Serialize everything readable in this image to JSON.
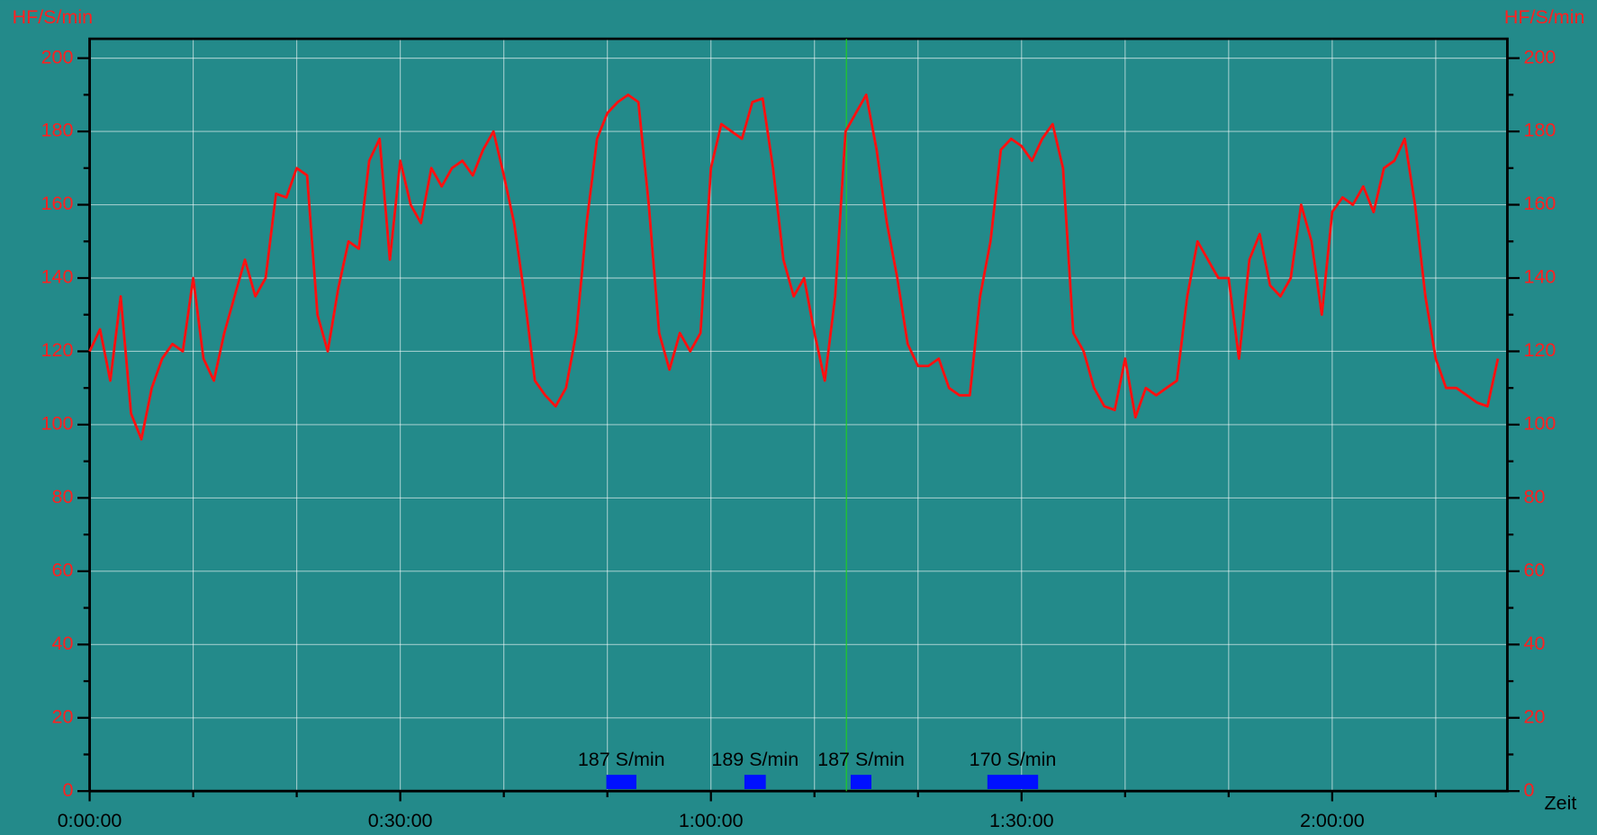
{
  "chart_data": {
    "type": "line",
    "y_label": "HF/S/min",
    "x_label": "Zeit",
    "color": "#ff1010",
    "x": [
      0,
      60,
      120,
      180,
      240,
      300,
      360,
      420,
      480,
      540,
      600,
      660,
      720,
      780,
      840,
      900,
      960,
      1020,
      1080,
      1140,
      1200,
      1260,
      1320,
      1380,
      1440,
      1500,
      1560,
      1620,
      1680,
      1740,
      1800,
      1860,
      1920,
      1980,
      2040,
      2100,
      2160,
      2220,
      2280,
      2340,
      2400,
      2460,
      2520,
      2580,
      2640,
      2700,
      2760,
      2820,
      2880,
      2940,
      3000,
      3060,
      3120,
      3180,
      3240,
      3300,
      3360,
      3420,
      3480,
      3540,
      3600,
      3660,
      3720,
      3780,
      3840,
      3900,
      3960,
      4020,
      4080,
      4140,
      4200,
      4260,
      4320,
      4380,
      4440,
      4500,
      4560,
      4620,
      4680,
      4740,
      4800,
      4860,
      4920,
      4980,
      5040,
      5100,
      5160,
      5220,
      5280,
      5340,
      5400,
      5460,
      5520,
      5580,
      5640,
      5700,
      5760,
      5820,
      5880,
      5940,
      6000,
      6060,
      6120,
      6180,
      6240,
      6300,
      6360,
      6420,
      6480,
      6540,
      6600,
      6660,
      6720,
      6780,
      6840,
      6900,
      6960,
      7020,
      7080,
      7140,
      7200,
      7260,
      7320,
      7380,
      7440,
      7500,
      7560,
      7620,
      7680,
      7740,
      7800,
      7860,
      7920,
      7980,
      8040,
      8100,
      8160
    ],
    "values": [
      120,
      126,
      112,
      135,
      103,
      96,
      110,
      118,
      122,
      120,
      140,
      118,
      112,
      125,
      135,
      145,
      135,
      140,
      163,
      162,
      170,
      168,
      130,
      120,
      137,
      150,
      148,
      172,
      178,
      145,
      172,
      160,
      155,
      170,
      165,
      170,
      172,
      168,
      175,
      180,
      168,
      155,
      135,
      112,
      108,
      105,
      110,
      125,
      155,
      178,
      185,
      188,
      190,
      188,
      160,
      125,
      115,
      125,
      120,
      125,
      170,
      182,
      180,
      178,
      188,
      189,
      170,
      145,
      135,
      140,
      125,
      112,
      135,
      180,
      185,
      190,
      175,
      155,
      140,
      122,
      116,
      116,
      118,
      110,
      108,
      108,
      135,
      150,
      175,
      178,
      176,
      172,
      178,
      182,
      170,
      125,
      120,
      110,
      105,
      104,
      118,
      102,
      110,
      108,
      110,
      112,
      135,
      150,
      145,
      140,
      140,
      118,
      145,
      152,
      138,
      135,
      140,
      160,
      150,
      130,
      158,
      162,
      160,
      165,
      158,
      170,
      172,
      178,
      160,
      135,
      118,
      110,
      110,
      108,
      106,
      105,
      118
    ],
    "xlim": [
      0,
      8215
    ],
    "xticks": [
      {
        "value": 0,
        "label": "0:00:00"
      },
      {
        "value": 1800,
        "label": "0:30:00"
      },
      {
        "value": 3600,
        "label": "1:00:00"
      },
      {
        "value": 5400,
        "label": "1:30:00"
      },
      {
        "value": 7200,
        "label": "2:00:00"
      }
    ],
    "xticks_minor": [
      600,
      1200,
      2400,
      3000,
      4200,
      4800,
      6000,
      6600,
      7800
    ],
    "ylim": [
      0,
      200
    ],
    "yticks": [
      0,
      20,
      40,
      60,
      80,
      100,
      120,
      140,
      160,
      180,
      200
    ],
    "yticks_minor": [
      10,
      30,
      50,
      70,
      90,
      110,
      130,
      150,
      170,
      190
    ],
    "grid": true,
    "cursor_x": 4385,
    "markers": [
      {
        "label": "187 S/min",
        "start": 2994,
        "end": 3168
      },
      {
        "label": "189 S/min",
        "start": 3794,
        "end": 3918
      },
      {
        "label": "187 S/min",
        "start": 4410,
        "end": 4530
      },
      {
        "label": "170 S/min",
        "start": 5202,
        "end": 5496
      }
    ]
  }
}
